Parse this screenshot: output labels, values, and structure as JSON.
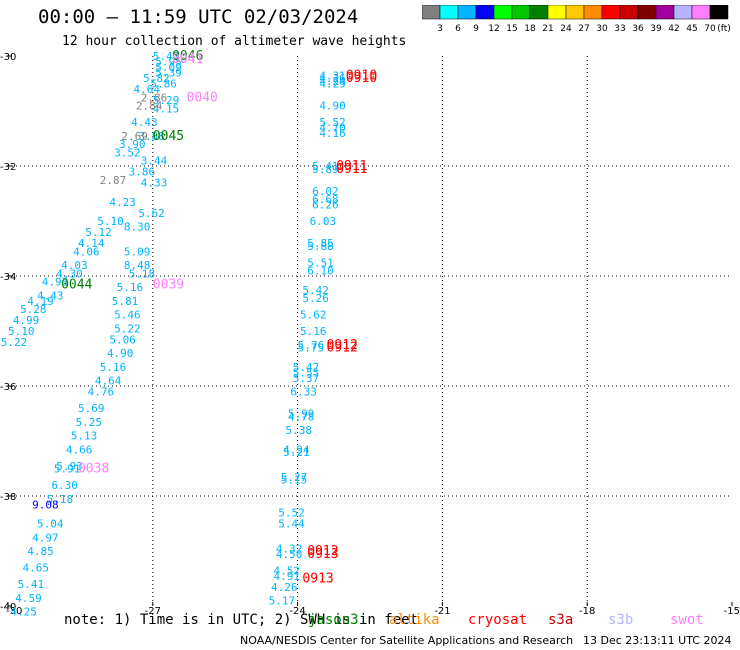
{
  "header": {
    "title": "00:00 – 11:59 UTC 02/03/2024",
    "subtitle": "12 hour collection of altimeter wave heights"
  },
  "colorbar": {
    "unit_label": "(ft)",
    "ticks": [
      "3",
      "6",
      "9",
      "12",
      "15",
      "18",
      "21",
      "24",
      "27",
      "30",
      "33",
      "36",
      "39",
      "42",
      "45",
      "70"
    ],
    "colors": [
      "#808080",
      "#00ffff",
      "#00b4ff",
      "#0000ff",
      "#00ff00",
      "#00c800",
      "#008000",
      "#ffff00",
      "#ffc800",
      "#ff8c00",
      "#ff0000",
      "#c80000",
      "#800000",
      "#a000a0",
      "#b4b4ff",
      "#ff80ff",
      "#000000"
    ]
  },
  "footer": {
    "note": "note: 1) Time is in UTC; 2) SWH is in feet",
    "missions": [
      {
        "name": "jason3",
        "color": "#008000"
      },
      {
        "name": "altika",
        "color": "#ff8c00"
      },
      {
        "name": "cryosat",
        "color": "#ff0000"
      },
      {
        "name": "s3a",
        "color": "#c80000"
      },
      {
        "name": "s3b",
        "color": "#b4b4ff"
      },
      {
        "name": "swot",
        "color": "#ff80ff"
      }
    ],
    "credit": "NOAA/NESDIS Center for Satellite Applications and Research",
    "generated": "13 Dec 23:13:11 UTC 2024"
  },
  "chart_data": {
    "type": "scatter",
    "xlim": [
      -30,
      -15
    ],
    "ylim": [
      -40,
      -30
    ],
    "x_ticks": [
      "-30",
      "-27",
      "-24",
      "-21",
      "-18",
      "-15"
    ],
    "y_ticks": [
      "-30",
      "-32",
      "-34",
      "-36",
      "-38",
      "-40"
    ],
    "grid": true,
    "colors": {
      "cyan": "#00ffff",
      "lblue": "#00b4ff",
      "blue": "#0000ff",
      "gray": "#808080",
      "green": "#008000",
      "red": "#ff0000",
      "pink": "#ff80ff"
    },
    "tracks": [
      {
        "color": "lblue",
        "points": [
          [
            -27,
            -30.0,
            "5.47"
          ],
          [
            -26.95,
            -30.1,
            "5.95"
          ],
          [
            -26.95,
            -30.2,
            "5.09"
          ],
          [
            -26.95,
            -30.3,
            "5.39"
          ],
          [
            -27.2,
            -30.4,
            "5.82"
          ],
          [
            -27.05,
            -30.5,
            "5.86"
          ],
          [
            -27.4,
            -30.6,
            "4.64"
          ],
          [
            -27.0,
            -30.8,
            "5.29"
          ],
          [
            -27.0,
            -30.95,
            "4.15"
          ],
          [
            -27.45,
            -31.2,
            "4.43"
          ],
          [
            -27.3,
            -31.45,
            "3.88"
          ],
          [
            -27.7,
            -31.6,
            "3.90"
          ],
          [
            -27.8,
            -31.75,
            "3.52"
          ],
          [
            -27.25,
            -31.9,
            "3.44"
          ],
          [
            -27.5,
            -32.1,
            "3.86"
          ],
          [
            -27.25,
            -32.3,
            "4.33"
          ],
          [
            -27.9,
            -32.65,
            "4.23"
          ],
          [
            -27.3,
            -32.85,
            "5.62"
          ],
          [
            -28.15,
            -33.0,
            "5.10"
          ],
          [
            -27.6,
            -33.1,
            "8.30"
          ],
          [
            -28.4,
            -33.2,
            "5.12"
          ],
          [
            -28.55,
            -33.4,
            "4.14"
          ],
          [
            -28.65,
            -33.55,
            "4.06"
          ],
          [
            -27.6,
            -33.55,
            "5.09"
          ],
          [
            -28.9,
            -33.8,
            "4.03"
          ],
          [
            -27.6,
            -33.8,
            "8.48"
          ],
          [
            -29.0,
            -33.95,
            "4.30"
          ],
          [
            -27.5,
            -33.95,
            "5.18"
          ],
          [
            -29.3,
            -34.1,
            "4.93"
          ],
          [
            -27.75,
            -34.2,
            "5.16"
          ],
          [
            -29.4,
            -34.35,
            "4.43"
          ],
          [
            -29.6,
            -34.45,
            "4.19"
          ],
          [
            -27.85,
            -34.45,
            "5.81"
          ],
          [
            -29.75,
            -34.6,
            "5.28"
          ],
          [
            -27.8,
            -34.7,
            "5.46"
          ],
          [
            -29.9,
            -34.8,
            "4.99"
          ],
          [
            -27.8,
            -34.95,
            "5.22"
          ],
          [
            -30.0,
            -35.0,
            "5.10"
          ],
          [
            -30.15,
            -35.2,
            "5.22"
          ],
          [
            -27.9,
            -35.15,
            "5.06"
          ],
          [
            -27.95,
            -35.4,
            "4.90"
          ],
          [
            -28.1,
            -35.65,
            "5.16"
          ],
          [
            -28.2,
            -35.9,
            "4.64"
          ],
          [
            -28.35,
            -36.1,
            "4.76"
          ],
          [
            -28.55,
            -36.4,
            "5.69"
          ],
          [
            -28.6,
            -36.65,
            "5.25"
          ],
          [
            -28.7,
            -36.9,
            "5.13"
          ],
          [
            -28.8,
            -37.15,
            "4.66"
          ],
          [
            -29.0,
            -37.45,
            "5.93"
          ],
          [
            -29.05,
            -37.5,
            "5.91"
          ],
          [
            -29.1,
            -37.8,
            "6.30"
          ],
          [
            -29.2,
            -38.05,
            "5.18"
          ],
          [
            -29.4,
            -38.5,
            "5.04"
          ],
          [
            -29.5,
            -38.75,
            "4.97"
          ],
          [
            -29.6,
            -39.0,
            "4.85"
          ],
          [
            -29.7,
            -39.3,
            "4.65"
          ],
          [
            -29.8,
            -39.6,
            "5.41"
          ],
          [
            -29.85,
            -39.85,
            "4.59"
          ],
          [
            -29.95,
            -40.1,
            "4.25"
          ],
          [
            -23.55,
            -30.35,
            "4.31"
          ],
          [
            -23.55,
            -30.4,
            "4.36"
          ],
          [
            -23.55,
            -30.45,
            "4.24"
          ],
          [
            -23.55,
            -30.5,
            "4.29"
          ],
          [
            -23.55,
            -30.9,
            "4.90"
          ],
          [
            -23.55,
            -31.2,
            "5.52"
          ],
          [
            -23.55,
            -31.3,
            "4.70"
          ],
          [
            -23.55,
            -31.4,
            "4.16"
          ],
          [
            -23.7,
            -32.0,
            "5.41"
          ],
          [
            -23.7,
            -32.05,
            "5.89"
          ],
          [
            -23.7,
            -32.45,
            "6.02"
          ],
          [
            -23.7,
            -32.6,
            "6.68"
          ],
          [
            -23.7,
            -32.7,
            "6.26"
          ],
          [
            -23.75,
            -33.0,
            "6.03"
          ],
          [
            -23.8,
            -33.4,
            "5.85"
          ],
          [
            -23.8,
            -33.45,
            "5.88"
          ],
          [
            -23.8,
            -33.75,
            "5.51"
          ],
          [
            -23.8,
            -33.9,
            "6.10"
          ],
          [
            -23.9,
            -34.25,
            "5.42"
          ],
          [
            -23.9,
            -34.4,
            "5.26"
          ],
          [
            -23.95,
            -34.7,
            "5.62"
          ],
          [
            -23.95,
            -35.0,
            "5.16"
          ],
          [
            -24.0,
            -35.25,
            "5.76"
          ],
          [
            -24.0,
            -35.3,
            "5.75"
          ],
          [
            -24.1,
            -35.65,
            "5.42"
          ],
          [
            -24.1,
            -35.75,
            "5.55"
          ],
          [
            -24.1,
            -35.85,
            "5.37"
          ],
          [
            -24.15,
            -36.1,
            "6.33"
          ],
          [
            -24.2,
            -36.5,
            "5.99"
          ],
          [
            -24.2,
            -36.55,
            "4.78"
          ],
          [
            -24.25,
            -36.8,
            "5.38"
          ],
          [
            -24.3,
            -37.15,
            "4.94"
          ],
          [
            -24.3,
            -37.2,
            "5.21"
          ],
          [
            -24.35,
            -37.65,
            "5.27"
          ],
          [
            -24.35,
            -37.7,
            "5.15"
          ],
          [
            -24.4,
            -38.3,
            "5.52"
          ],
          [
            -24.4,
            -38.5,
            "5.44"
          ],
          [
            -24.45,
            -38.95,
            "4.32"
          ],
          [
            -24.45,
            -39.05,
            "4.50"
          ],
          [
            -24.5,
            -39.35,
            "4.52"
          ],
          [
            -24.5,
            -39.45,
            "4.91"
          ],
          [
            -24.55,
            -39.65,
            "4.26"
          ],
          [
            -24.6,
            -39.9,
            "5.17"
          ]
        ]
      },
      {
        "color": "gray",
        "points": [
          [
            -27.25,
            -30.75,
            "2.86"
          ],
          [
            -27.35,
            -30.9,
            "2.84"
          ],
          [
            -27.65,
            -31.45,
            "2.69"
          ],
          [
            -28.1,
            -32.25,
            "2.87"
          ]
        ]
      },
      {
        "color": "blue",
        "points": [
          [
            -29.5,
            -38.15,
            "9.08"
          ]
        ]
      },
      {
        "color": "green",
        "points": [
          [
            -26.6,
            -30.0,
            "0046"
          ],
          [
            -27.0,
            -31.45,
            "0045"
          ],
          [
            -28.9,
            -34.15,
            "0044"
          ]
        ]
      },
      {
        "color": "pink",
        "points": [
          [
            -26.6,
            -30.05,
            "0041"
          ],
          [
            -26.3,
            -30.75,
            "0040"
          ],
          [
            -27.0,
            -34.15,
            "0039"
          ],
          [
            -28.55,
            -37.5,
            "0038"
          ]
        ]
      },
      {
        "color": "red",
        "points": [
          [
            -23.0,
            -30.35,
            "0910"
          ],
          [
            -23.0,
            -30.4,
            "0910"
          ],
          [
            -23.2,
            -32.0,
            "0911"
          ],
          [
            -23.2,
            -32.05,
            "0911"
          ],
          [
            -23.4,
            -35.25,
            "0912"
          ],
          [
            -23.4,
            -35.3,
            "0912"
          ],
          [
            -23.8,
            -39.0,
            "0912"
          ],
          [
            -23.8,
            -39.05,
            "0913"
          ],
          [
            -23.9,
            -39.5,
            "0913"
          ]
        ]
      }
    ]
  }
}
